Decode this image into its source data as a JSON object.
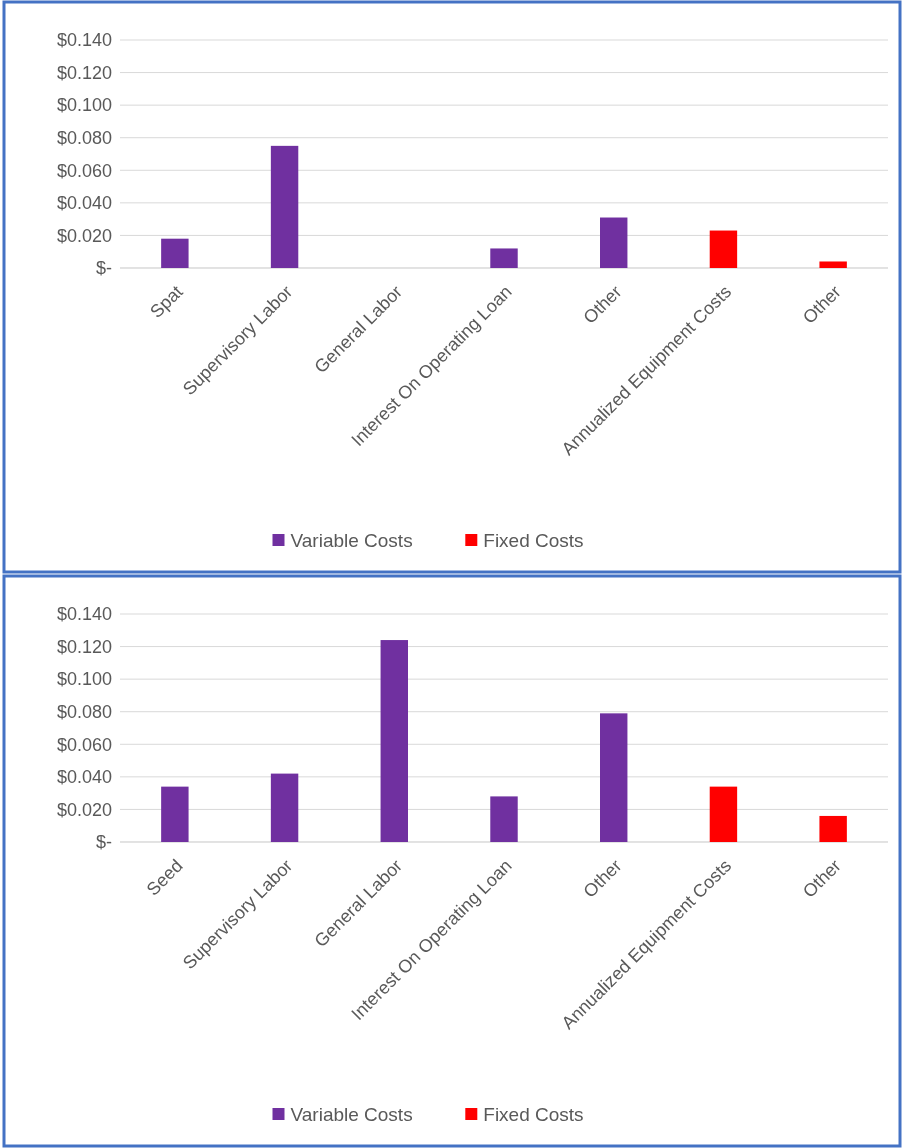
{
  "chart_data": [
    {
      "type": "bar",
      "stacked": true,
      "categories": [
        "Spat",
        "Supervisory Labor",
        "General Labor",
        "Interest On Operating Loan",
        "Other",
        "Annualized Equipment Costs",
        "Other"
      ],
      "series": [
        {
          "name": "Variable Costs",
          "color": "#7030a0",
          "values": [
            0.018,
            0.075,
            0,
            0.012,
            0.031,
            null,
            null
          ]
        },
        {
          "name": "Fixed Costs",
          "color": "#ff0000",
          "values": [
            null,
            null,
            null,
            null,
            null,
            0.023,
            0.004
          ]
        }
      ],
      "ylim": [
        0,
        0.14
      ],
      "yticks": [
        {
          "value": 0,
          "label": "$-"
        },
        {
          "value": 0.02,
          "label": "$0.020"
        },
        {
          "value": 0.04,
          "label": "$0.040"
        },
        {
          "value": 0.06,
          "label": "$0.060"
        },
        {
          "value": 0.08,
          "label": "$0.080"
        },
        {
          "value": 0.1,
          "label": "$0.100"
        },
        {
          "value": 0.12,
          "label": "$0.120"
        },
        {
          "value": 0.14,
          "label": "$0.140"
        }
      ],
      "grid": "y",
      "legend": "bottom"
    },
    {
      "type": "bar",
      "stacked": true,
      "categories": [
        "Seed",
        "Supervisory Labor",
        "General Labor",
        "Interest On Operating Loan",
        "Other",
        "Annualized Equipment Costs",
        "Other"
      ],
      "series": [
        {
          "name": "Variable Costs",
          "color": "#7030a0",
          "values": [
            0.034,
            0.042,
            0.124,
            0.028,
            0.079,
            null,
            null
          ]
        },
        {
          "name": "Fixed Costs",
          "color": "#ff0000",
          "values": [
            null,
            null,
            null,
            null,
            null,
            0.034,
            0.016
          ]
        }
      ],
      "ylim": [
        0,
        0.14
      ],
      "yticks": [
        {
          "value": 0,
          "label": "$-"
        },
        {
          "value": 0.02,
          "label": "$0.020"
        },
        {
          "value": 0.04,
          "label": "$0.040"
        },
        {
          "value": 0.06,
          "label": "$0.060"
        },
        {
          "value": 0.08,
          "label": "$0.080"
        },
        {
          "value": 0.1,
          "label": "$0.100"
        },
        {
          "value": 0.12,
          "label": "$0.120"
        },
        {
          "value": 0.14,
          "label": "$0.140"
        }
      ],
      "grid": "y",
      "legend": "bottom"
    }
  ]
}
